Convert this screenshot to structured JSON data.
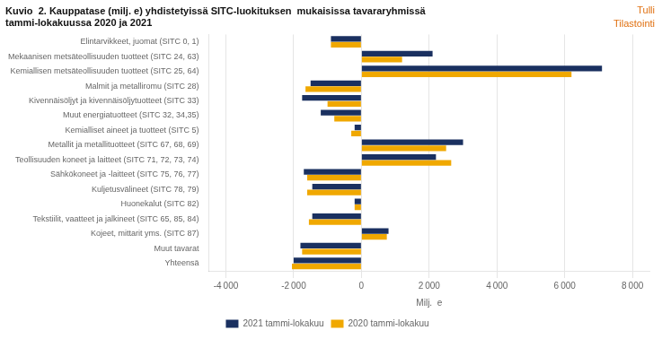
{
  "chart_data": {
    "type": "bar",
    "orientation": "horizontal",
    "title": "Kuvio  2. Kauppatase (milj. e) yhdistetyissä SITC-luokituksen  mukaisissa tavararyhmissä\ntammi-lokakuussa 2020 ja 2021",
    "annotations": [
      {
        "text": "Tulli",
        "color": "#e07010"
      },
      {
        "text": "Tilastointi",
        "color": "#e07010"
      }
    ],
    "categories": [
      "Elintarvikkeet, juomat (SITC 0, 1)",
      "Mekaanisen metsäteollisuuden tuotteet (SITC 24, 63)",
      "Kemiallisen metsäteollisuuden tuotteet (SITC 25, 64)",
      "Malmit ja metalliromu (SITC 28)",
      "Kivennäisöljyt ja kivennäisöljytuotteet (SITC 33)",
      "Muut energiatuotteet (SITC 32, 34,35)",
      "Kemialliset aineet ja tuotteet (SITC 5)",
      "Metallit ja metallituotteet (SITC 67, 68, 69)",
      "Teollisuuden koneet ja laitteet (SITC 71, 72, 73, 74)",
      "Sähkökoneet ja -laitteet (SITC 75, 76, 77)",
      "Kuljetusvälineet (SITC 78, 79)",
      "Huonekalut (SITC 82)",
      "Tekstiilit, vaatteet ja jalkineet (SITC 65, 85, 84)",
      "Kojeet, mittarit yms. (SITC 87)",
      "Muut tavarat",
      "Yhteensä"
    ],
    "series": [
      {
        "name": "2021 tammi-lokakuu",
        "color": "#1a3060",
        "values": [
          -900,
          2100,
          7100,
          -1500,
          -1750,
          -1200,
          -200,
          3000,
          2200,
          -1700,
          -1450,
          -200,
          -1450,
          800,
          -1800,
          -2000
        ]
      },
      {
        "name": "2020 tammi-lokakuu",
        "color": "#f0a800",
        "values": [
          -900,
          1200,
          6200,
          -1650,
          -1000,
          -800,
          -300,
          2500,
          2650,
          -1600,
          -1600,
          -200,
          -1550,
          750,
          -1750,
          -2050
        ]
      }
    ],
    "xlabel": "Milj.  e",
    "xlim": [
      -4500,
      8500
    ],
    "xticks": [
      {
        "value": -4000,
        "label": "-4 000"
      },
      {
        "value": -2000,
        "label": "-2 000"
      },
      0,
      {
        "value": 2000,
        "label": "2 000"
      },
      {
        "value": 4000,
        "label": "4 000"
      },
      {
        "value": 6000,
        "label": "6 000"
      },
      {
        "value": 8000,
        "label": "8 000"
      }
    ],
    "grid": true,
    "legend": "bottom"
  }
}
